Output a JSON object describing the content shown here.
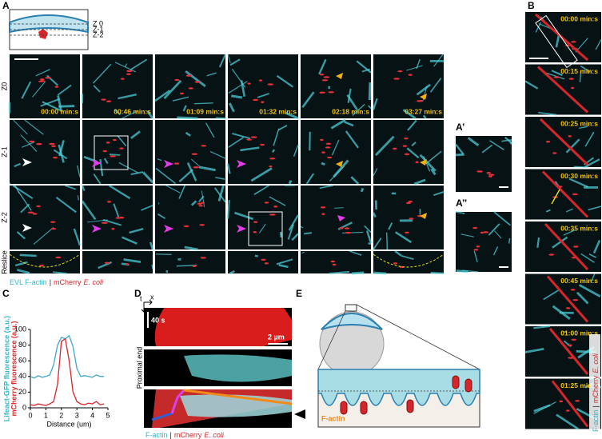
{
  "panel_a": {
    "label": "A",
    "schematic_labels": [
      "Z 0",
      "Z-1",
      "Z-2"
    ],
    "row_labels": [
      "Z0",
      "Z-1",
      "Z-2",
      "Reslice"
    ],
    "timestamps": [
      "00:00 min:s",
      "00:46 min:s",
      "01:09 min:s",
      "01:32 min:s",
      "02:18 min:s",
      "03:27 min:s"
    ],
    "caption": {
      "actin": "EVL F-actin",
      "separator": "|",
      "cherry": "mCherry",
      "species": "E. coli"
    }
  },
  "panel_a_prime": {
    "label": "A’"
  },
  "panel_a_double_prime": {
    "label": "A’’"
  },
  "panel_b": {
    "label": "B",
    "timestamps": [
      "00:00 min:s",
      "00:15 min:s",
      "00:25 min:s",
      "00:30 min:s",
      "00:35 min:s",
      "00:45 min:s",
      "01:00 min:s",
      "01:25 min:s"
    ],
    "caption": {
      "actin": "F-actin",
      "separator": "|",
      "cherry": "mCherry",
      "species": "E. coli"
    }
  },
  "panel_c": {
    "label": "C",
    "type": "line",
    "x_label": "Distance (um)",
    "y_label_actin": "Lifeact-GFP fluorescence (a.u.)",
    "y_label_cherry": "mCherry fluorescence (a.u.)",
    "x": [
      0,
      0.25,
      0.5,
      0.75,
      1,
      1.25,
      1.5,
      1.75,
      2,
      2.25,
      2.5,
      2.75,
      3,
      3.25,
      3.5,
      3.75,
      4,
      4.25,
      4.5,
      4.75
    ],
    "series": [
      {
        "name": "Lifeact-GFP",
        "color": "#3fa7c9",
        "values": [
          40,
          38,
          41,
          39,
          40,
          42,
          55,
          80,
          90,
          88,
          92,
          78,
          50,
          40,
          41,
          40,
          39,
          42,
          40,
          40
        ]
      },
      {
        "name": "mCherry",
        "color": "#d7262b",
        "values": [
          4,
          3,
          5,
          4,
          3,
          5,
          8,
          30,
          85,
          88,
          60,
          20,
          8,
          5,
          4,
          6,
          5,
          8,
          4,
          5
        ]
      }
    ],
    "xlim": [
      0,
      5
    ],
    "ylim": [
      0,
      100
    ],
    "xticks": [
      0,
      1,
      2,
      3,
      4,
      5
    ],
    "yticks": [
      0,
      20,
      40,
      60,
      80,
      100
    ]
  },
  "panel_d": {
    "label": "D",
    "axis_t": "t",
    "axis_x": "x",
    "time_scale": "40 s",
    "length_scale": "2 µm",
    "side_label": "Proximal end",
    "caption": {
      "actin": "F-actin",
      "separator": "|",
      "cherry": "mCherry",
      "species": "E. coli"
    }
  },
  "panel_e": {
    "label": "E",
    "actin_label": "F-actin"
  }
}
